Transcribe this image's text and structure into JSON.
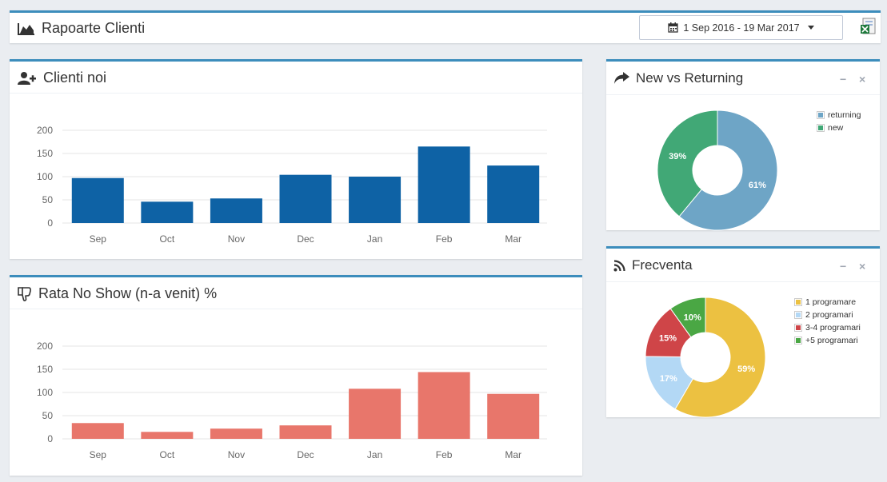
{
  "header": {
    "title": "Rapoarte Clienti",
    "date_range": "1 Sep 2016 - 19 Mar 2017"
  },
  "panels": {
    "clienti_noi": {
      "title": "Clienti noi"
    },
    "no_show": {
      "title": "Rata No Show (n-a venit) %"
    },
    "new_vs_returning": {
      "title": "New vs Returning",
      "minimize": "−",
      "close": "×"
    },
    "frecventa": {
      "title": "Frecventa",
      "minimize": "−",
      "close": "×"
    }
  },
  "chart_data": [
    {
      "type": "bar",
      "categories": [
        "Sep",
        "Oct",
        "Nov",
        "Dec",
        "Jan",
        "Feb",
        "Mar"
      ],
      "values": [
        97,
        46,
        53,
        104,
        100,
        165,
        124
      ],
      "ylim": [
        0,
        200
      ],
      "yticks": [
        0,
        50,
        100,
        150,
        200
      ],
      "grid": true,
      "color": "#0e62a5"
    },
    {
      "type": "bar",
      "categories": [
        "Sep",
        "Oct",
        "Nov",
        "Dec",
        "Jan",
        "Feb",
        "Mar"
      ],
      "values": [
        34,
        15,
        22,
        29,
        108,
        144,
        97
      ],
      "ylim": [
        0,
        200
      ],
      "yticks": [
        0,
        50,
        100,
        150,
        200
      ],
      "grid": true,
      "color": "#e8766b"
    },
    {
      "type": "pie",
      "labels": [
        "returning",
        "new"
      ],
      "values": [
        61,
        39
      ],
      "colors": [
        "#6ea5c6",
        "#41a876"
      ],
      "legend": "top-right"
    },
    {
      "type": "pie",
      "labels": [
        "1 programare",
        "2 programari",
        "3-4 programari",
        "+5 programari"
      ],
      "values": [
        59,
        17,
        15,
        10
      ],
      "colors": [
        "#ecc141",
        "#b3d8f5",
        "#cf4548",
        "#4aa744"
      ],
      "legend": "top-right"
    }
  ]
}
